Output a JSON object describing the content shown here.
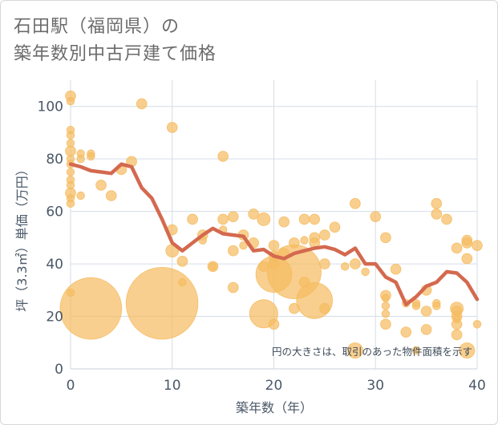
{
  "title_line1": "石田駅（福岡県）の",
  "title_line2": "築年数別中古戸建て価格",
  "chart_data": {
    "type": "scatter",
    "title": "石田駅（福岡県）の築年数別中古戸建て価格",
    "xlabel": "築年数（年）",
    "ylabel": "坪（3.3㎡）単価（万円）",
    "xlim": [
      0,
      40
    ],
    "ylim": [
      0,
      110
    ],
    "x_ticks": [
      "0",
      "10",
      "20",
      "30",
      "40"
    ],
    "y_ticks": [
      "0",
      "20",
      "40",
      "60",
      "80",
      "100"
    ],
    "grid": true,
    "note": "円の大きさは、取引のあった物件面積を示す",
    "colors": {
      "bubble_fill": "#f5bc62",
      "line": "#d4694f",
      "grid": "#d5dde6",
      "axis_text": "#4a5868"
    },
    "bubbles": [
      {
        "x": 0,
        "y": 104,
        "size": 4
      },
      {
        "x": 0,
        "y": 102,
        "size": 3
      },
      {
        "x": 0,
        "y": 91,
        "size": 3
      },
      {
        "x": 0,
        "y": 89,
        "size": 3
      },
      {
        "x": 0,
        "y": 86,
        "size": 3
      },
      {
        "x": 0,
        "y": 83,
        "size": 4
      },
      {
        "x": 0,
        "y": 80,
        "size": 3
      },
      {
        "x": 0,
        "y": 78,
        "size": 3
      },
      {
        "x": 0,
        "y": 75,
        "size": 3
      },
      {
        "x": 0,
        "y": 72,
        "size": 3
      },
      {
        "x": 0,
        "y": 70,
        "size": 3
      },
      {
        "x": 0,
        "y": 67,
        "size": 4
      },
      {
        "x": 0,
        "y": 65,
        "size": 3
      },
      {
        "x": 0,
        "y": 63,
        "size": 3
      },
      {
        "x": 0,
        "y": 29,
        "size": 3
      },
      {
        "x": 1,
        "y": 82,
        "size": 3
      },
      {
        "x": 1,
        "y": 80,
        "size": 3
      },
      {
        "x": 1,
        "y": 66,
        "size": 3
      },
      {
        "x": 2,
        "y": 82,
        "size": 3
      },
      {
        "x": 2,
        "y": 81,
        "size": 3
      },
      {
        "x": 2,
        "y": 23,
        "size": 24
      },
      {
        "x": 3,
        "y": 70,
        "size": 4
      },
      {
        "x": 4,
        "y": 66,
        "size": 4
      },
      {
        "x": 5,
        "y": 76,
        "size": 4
      },
      {
        "x": 6,
        "y": 79,
        "size": 4
      },
      {
        "x": 7,
        "y": 101,
        "size": 4
      },
      {
        "x": 9,
        "y": 25,
        "size": 28
      },
      {
        "x": 10,
        "y": 92,
        "size": 4
      },
      {
        "x": 10,
        "y": 53,
        "size": 4
      },
      {
        "x": 10,
        "y": 45,
        "size": 5
      },
      {
        "x": 11,
        "y": 41,
        "size": 4
      },
      {
        "x": 11,
        "y": 33,
        "size": 3
      },
      {
        "x": 12,
        "y": 57,
        "size": 4
      },
      {
        "x": 13,
        "y": 51,
        "size": 4
      },
      {
        "x": 13,
        "y": 49,
        "size": 3
      },
      {
        "x": 14,
        "y": 39,
        "size": 4
      },
      {
        "x": 14,
        "y": 39,
        "size": 3
      },
      {
        "x": 15,
        "y": 81,
        "size": 4
      },
      {
        "x": 15,
        "y": 57,
        "size": 4
      },
      {
        "x": 15,
        "y": 53,
        "size": 3
      },
      {
        "x": 16,
        "y": 58,
        "size": 4
      },
      {
        "x": 16,
        "y": 45,
        "size": 4
      },
      {
        "x": 16,
        "y": 31,
        "size": 4
      },
      {
        "x": 17,
        "y": 51,
        "size": 4
      },
      {
        "x": 17,
        "y": 47,
        "size": 3
      },
      {
        "x": 18,
        "y": 59,
        "size": 4
      },
      {
        "x": 18,
        "y": 48,
        "size": 4
      },
      {
        "x": 19,
        "y": 57,
        "size": 5
      },
      {
        "x": 19,
        "y": 39,
        "size": 4
      },
      {
        "x": 19,
        "y": 21,
        "size": 11
      },
      {
        "x": 20,
        "y": 47,
        "size": 4
      },
      {
        "x": 20,
        "y": 43,
        "size": 4
      },
      {
        "x": 20,
        "y": 40,
        "size": 4
      },
      {
        "x": 20,
        "y": 36,
        "size": 14
      },
      {
        "x": 20,
        "y": 17,
        "size": 4
      },
      {
        "x": 21,
        "y": 56,
        "size": 4
      },
      {
        "x": 21,
        "y": 44,
        "size": 4
      },
      {
        "x": 22,
        "y": 48,
        "size": 4
      },
      {
        "x": 22,
        "y": 37,
        "size": 21
      },
      {
        "x": 22,
        "y": 23,
        "size": 4
      },
      {
        "x": 23,
        "y": 57,
        "size": 4
      },
      {
        "x": 23,
        "y": 49,
        "size": 3
      },
      {
        "x": 23,
        "y": 33,
        "size": 4
      },
      {
        "x": 24,
        "y": 57,
        "size": 4
      },
      {
        "x": 24,
        "y": 50,
        "size": 4
      },
      {
        "x": 24,
        "y": 48,
        "size": 4
      },
      {
        "x": 24,
        "y": 26,
        "size": 14
      },
      {
        "x": 25,
        "y": 51,
        "size": 4
      },
      {
        "x": 25,
        "y": 40,
        "size": 4
      },
      {
        "x": 25,
        "y": 23,
        "size": 4
      },
      {
        "x": 26,
        "y": 54,
        "size": 4
      },
      {
        "x": 27,
        "y": 39,
        "size": 3
      },
      {
        "x": 28,
        "y": 63,
        "size": 4
      },
      {
        "x": 28,
        "y": 40,
        "size": 4
      },
      {
        "x": 28,
        "y": 7,
        "size": 6
      },
      {
        "x": 29,
        "y": 37,
        "size": 3
      },
      {
        "x": 30,
        "y": 58,
        "size": 4
      },
      {
        "x": 31,
        "y": 50,
        "size": 4
      },
      {
        "x": 31,
        "y": 28,
        "size": 4
      },
      {
        "x": 31,
        "y": 27,
        "size": 3
      },
      {
        "x": 31,
        "y": 24,
        "size": 3
      },
      {
        "x": 31,
        "y": 21,
        "size": 3
      },
      {
        "x": 31,
        "y": 17,
        "size": 4
      },
      {
        "x": 32,
        "y": 38,
        "size": 4
      },
      {
        "x": 33,
        "y": 25,
        "size": 3
      },
      {
        "x": 33,
        "y": 14,
        "size": 4
      },
      {
        "x": 34,
        "y": 25,
        "size": 3
      },
      {
        "x": 34,
        "y": 24,
        "size": 3
      },
      {
        "x": 34,
        "y": 7,
        "size": 3
      },
      {
        "x": 35,
        "y": 30,
        "size": 4
      },
      {
        "x": 35,
        "y": 22,
        "size": 4
      },
      {
        "x": 35,
        "y": 15,
        "size": 4
      },
      {
        "x": 36,
        "y": 63,
        "size": 4
      },
      {
        "x": 36,
        "y": 59,
        "size": 4
      },
      {
        "x": 36,
        "y": 25,
        "size": 3
      },
      {
        "x": 36,
        "y": 24,
        "size": 3
      },
      {
        "x": 37,
        "y": 57,
        "size": 4
      },
      {
        "x": 38,
        "y": 46,
        "size": 4
      },
      {
        "x": 38,
        "y": 23,
        "size": 5
      },
      {
        "x": 38,
        "y": 22,
        "size": 4
      },
      {
        "x": 38,
        "y": 20,
        "size": 4
      },
      {
        "x": 38,
        "y": 19,
        "size": 3
      },
      {
        "x": 38,
        "y": 17,
        "size": 4
      },
      {
        "x": 38,
        "y": 13,
        "size": 4
      },
      {
        "x": 39,
        "y": 49,
        "size": 4
      },
      {
        "x": 39,
        "y": 48,
        "size": 4
      },
      {
        "x": 39,
        "y": 42,
        "size": 4
      },
      {
        "x": 39,
        "y": 7,
        "size": 6
      },
      {
        "x": 40,
        "y": 47,
        "size": 4
      },
      {
        "x": 40,
        "y": 17,
        "size": 3
      }
    ],
    "trend": {
      "x": [
        0,
        1,
        2,
        3,
        4,
        5,
        6,
        7,
        8,
        9,
        10,
        11,
        12,
        13,
        14,
        15,
        16,
        17,
        18,
        19,
        20,
        21,
        22,
        23,
        24,
        25,
        26,
        27,
        28,
        29,
        30,
        31,
        32,
        33,
        34,
        35,
        36,
        37,
        38,
        39,
        40
      ],
      "y": [
        78,
        77,
        75.5,
        75,
        74.5,
        78,
        77,
        69,
        65,
        57,
        48,
        45,
        48,
        51,
        53.5,
        51.5,
        51,
        50.5,
        45,
        45.5,
        43,
        42,
        44,
        45,
        46,
        46.5,
        45.5,
        43.5,
        46,
        40,
        40,
        35,
        33,
        24.5,
        27.5,
        31.5,
        33,
        37,
        36.5,
        33,
        26.5
      ]
    }
  }
}
